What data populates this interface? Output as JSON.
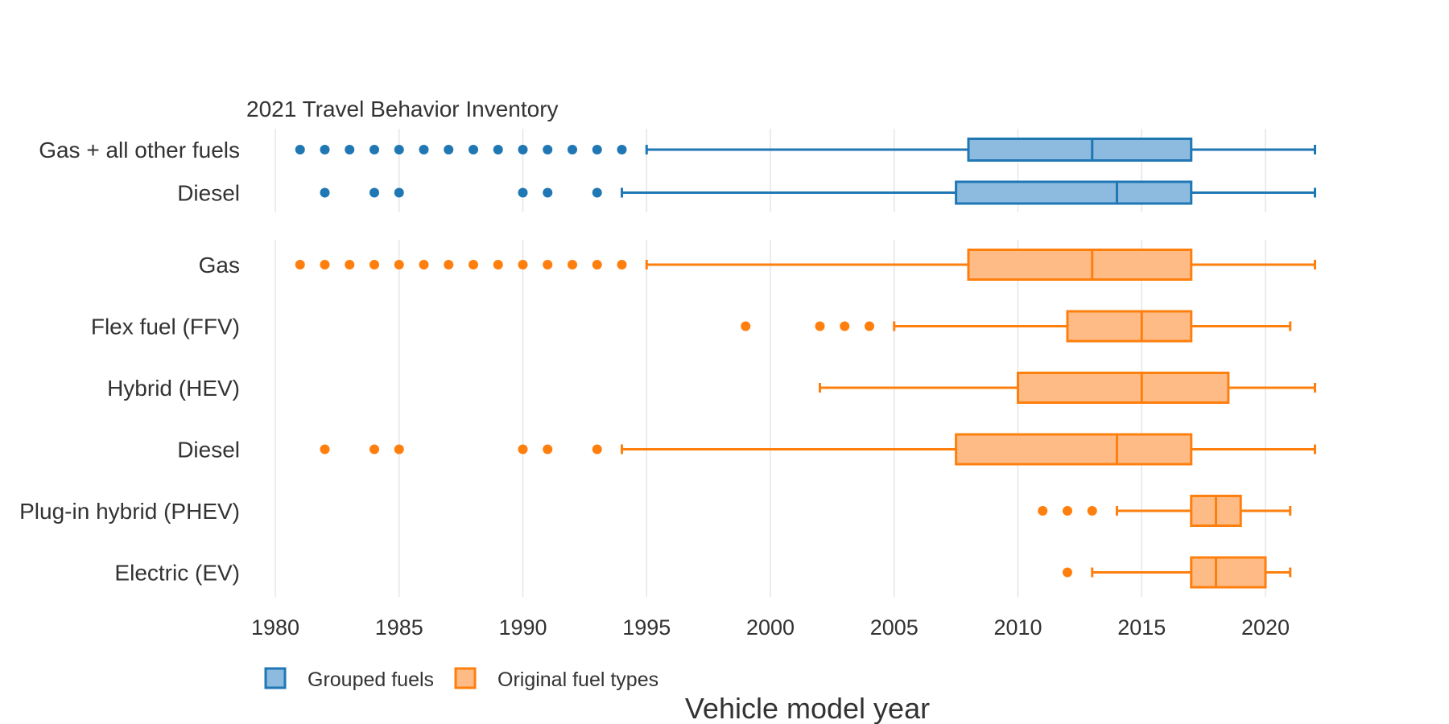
{
  "chart_data": {
    "type": "box",
    "subtitle": "2021 Travel Behavior Inventory",
    "xlabel": "Vehicle model year",
    "xlim": [
      1979.2,
      2023
    ],
    "xticks": [
      1980,
      1985,
      1990,
      1995,
      2000,
      2005,
      2010,
      2015,
      2020
    ],
    "grid": true,
    "legend": {
      "position": "bottom-left",
      "entries": [
        {
          "label": "Grouped fuels",
          "color": "#1f77b4",
          "fill": "#8dbadf"
        },
        {
          "label": "Original fuel types",
          "color": "#ff7f0e",
          "fill": "#ffbb85"
        }
      ]
    },
    "panels": [
      {
        "name": "Grouped fuels",
        "color": "#1f77b4",
        "fill": "#8dbadf",
        "boxes": [
          {
            "label": "Gas + all other fuels",
            "whisker_low": 1995,
            "q1": 2008,
            "median": 2013,
            "q3": 2017,
            "whisker_high": 2022,
            "outliers": [
              1981,
              1982,
              1983,
              1984,
              1985,
              1986,
              1987,
              1988,
              1989,
              1990,
              1991,
              1992,
              1993,
              1994
            ]
          },
          {
            "label": "Diesel",
            "whisker_low": 1994,
            "q1": 2007.5,
            "median": 2014,
            "q3": 2017,
            "whisker_high": 2022,
            "outliers": [
              1982,
              1984,
              1985,
              1990,
              1991,
              1993
            ]
          }
        ]
      },
      {
        "name": "Original fuel types",
        "color": "#ff7f0e",
        "fill": "#ffbb85",
        "boxes": [
          {
            "label": "Gas",
            "whisker_low": 1995,
            "q1": 2008,
            "median": 2013,
            "q3": 2017,
            "whisker_high": 2022,
            "outliers": [
              1981,
              1982,
              1983,
              1984,
              1985,
              1986,
              1987,
              1988,
              1989,
              1990,
              1991,
              1992,
              1993,
              1994
            ]
          },
          {
            "label": "Flex fuel (FFV)",
            "whisker_low": 2005,
            "q1": 2012,
            "median": 2015,
            "q3": 2017,
            "whisker_high": 2021,
            "outliers": [
              1999,
              2002,
              2003,
              2004
            ]
          },
          {
            "label": "Hybrid (HEV)",
            "whisker_low": 2002,
            "q1": 2010,
            "median": 2015,
            "q3": 2018.5,
            "whisker_high": 2022,
            "outliers": []
          },
          {
            "label": "Diesel",
            "whisker_low": 1994,
            "q1": 2007.5,
            "median": 2014,
            "q3": 2017,
            "whisker_high": 2022,
            "outliers": [
              1982,
              1984,
              1985,
              1990,
              1991,
              1993
            ]
          },
          {
            "label": "Plug-in hybrid (PHEV)",
            "whisker_low": 2014,
            "q1": 2017,
            "median": 2018,
            "q3": 2019,
            "whisker_high": 2021,
            "outliers": [
              2011,
              2012,
              2013
            ]
          },
          {
            "label": "Electric (EV)",
            "whisker_low": 2013,
            "q1": 2017,
            "median": 2018,
            "q3": 2020,
            "whisker_high": 2021,
            "outliers": [
              2012
            ]
          }
        ]
      }
    ]
  }
}
